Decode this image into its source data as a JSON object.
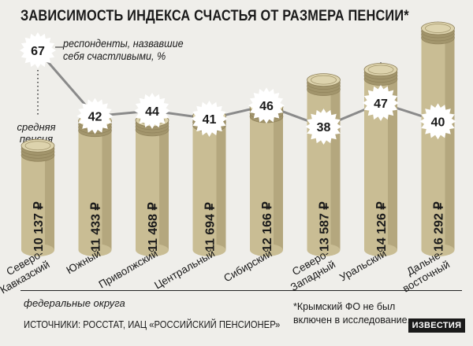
{
  "title": "ЗАВИСИМОСТЬ ИНДЕКСА СЧАСТЬЯ ОТ РАЗМЕРА ПЕНСИИ*",
  "legend": {
    "happy_line1": "респонденты, назвавшие",
    "happy_line2": "себя счастливыми, %",
    "pension_line1": "средняя",
    "pension_line2": "пенсия"
  },
  "axis_caption": "федеральные округа",
  "sources": "ИСТОЧНИКИ: РОССТАТ, ИАЦ «РОССИЙСКИЙ ПЕНСИОНЕР»",
  "footnote": {
    "line1": "*Крымский ФО не был",
    "line2": "включен в исследование."
  },
  "logo": "ИЗВЕСТИЯ",
  "colors": {
    "background": "#efeeea",
    "coin_body": "#c9bd94",
    "coin_shade": "#a2956c",
    "coin_top": "#ddd3ad",
    "line": "#8a8a8a",
    "badge": "#ffffff"
  },
  "chart_data": {
    "type": "bar",
    "categories": [
      [
        "Северо-",
        "Кавказский"
      ],
      [
        "Южный"
      ],
      [
        "Приволжский"
      ],
      [
        "Центральный"
      ],
      [
        "Сибирский"
      ],
      [
        "Северо-",
        "Западный"
      ],
      [
        "Уральский"
      ],
      [
        "Дальне-",
        "восточный"
      ]
    ],
    "pension_labels": [
      "10 137 ₽",
      "11 433 ₽",
      "11 468 ₽",
      "11 694 ₽",
      "12 166 ₽",
      "13 587 ₽",
      "14 126 ₽",
      "16 292 ₽"
    ],
    "series": [
      {
        "name": "средняя пенсия",
        "values": [
          10137,
          11433,
          11468,
          11694,
          12166,
          13587,
          14126,
          16292
        ]
      },
      {
        "name": "респонденты, назвавшие себя счастливыми, %",
        "values": [
          67,
          42,
          44,
          41,
          46,
          38,
          47,
          40
        ]
      }
    ]
  }
}
